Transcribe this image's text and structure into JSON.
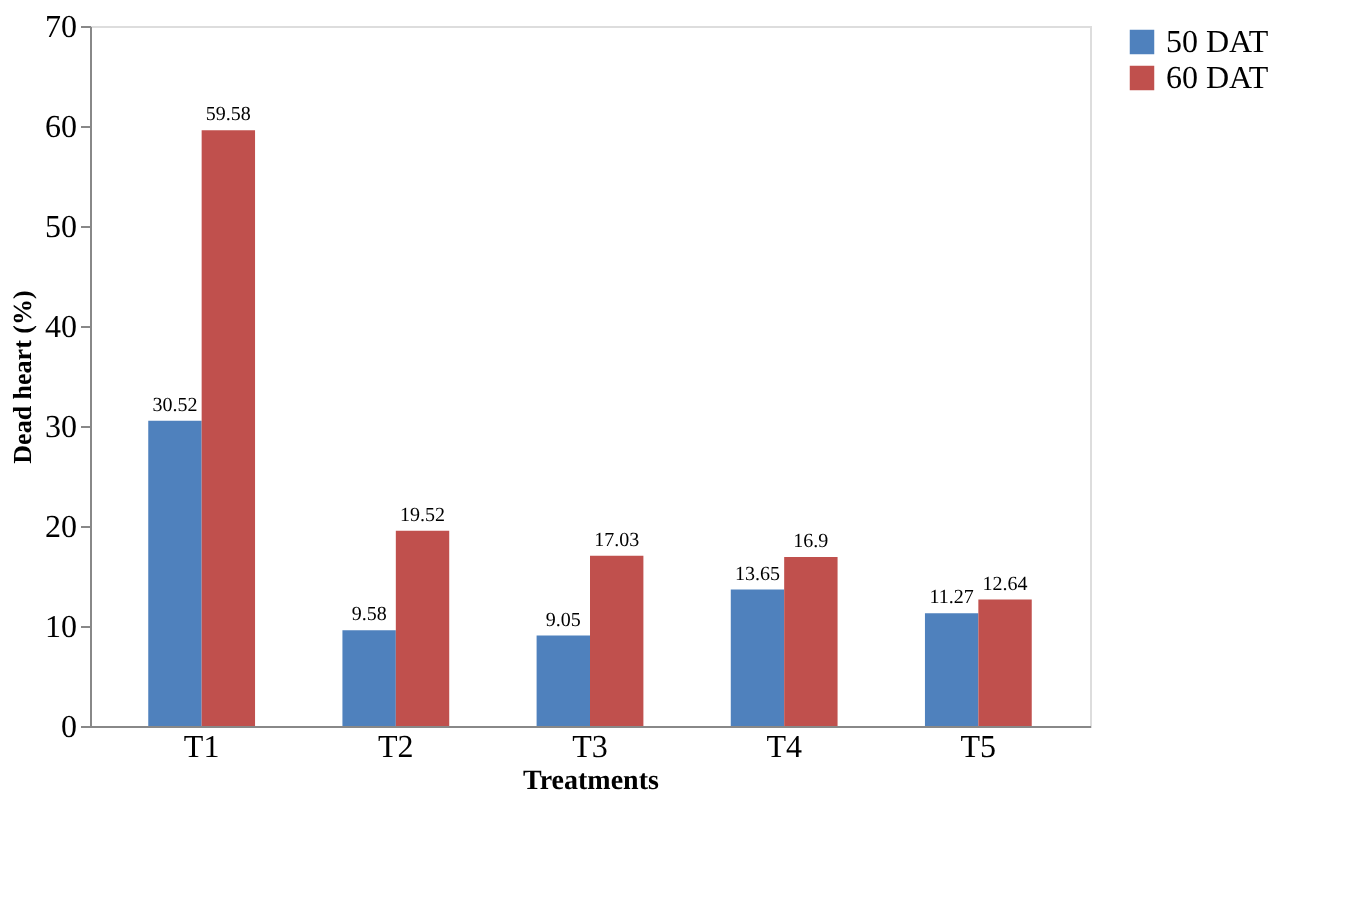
{
  "chart_data": {
    "type": "bar",
    "xlabel": "Treatments",
    "ylabel": "Dead heart (%)",
    "categories": [
      "T1",
      "T2",
      "T3",
      "T4",
      "T5"
    ],
    "series": [
      {
        "name": "50 DAT",
        "color": "#4f81bd",
        "values": [
          30.52,
          9.58,
          9.05,
          13.65,
          11.27
        ]
      },
      {
        "name": "60 DAT",
        "color": "#c0504d",
        "values": [
          59.58,
          19.52,
          17.03,
          16.9,
          12.64
        ]
      }
    ],
    "ylim": [
      0,
      70
    ],
    "yticks": [
      0,
      10,
      20,
      30,
      40,
      50,
      60,
      70
    ],
    "grid": false,
    "legend": "right",
    "data_labels": true
  }
}
